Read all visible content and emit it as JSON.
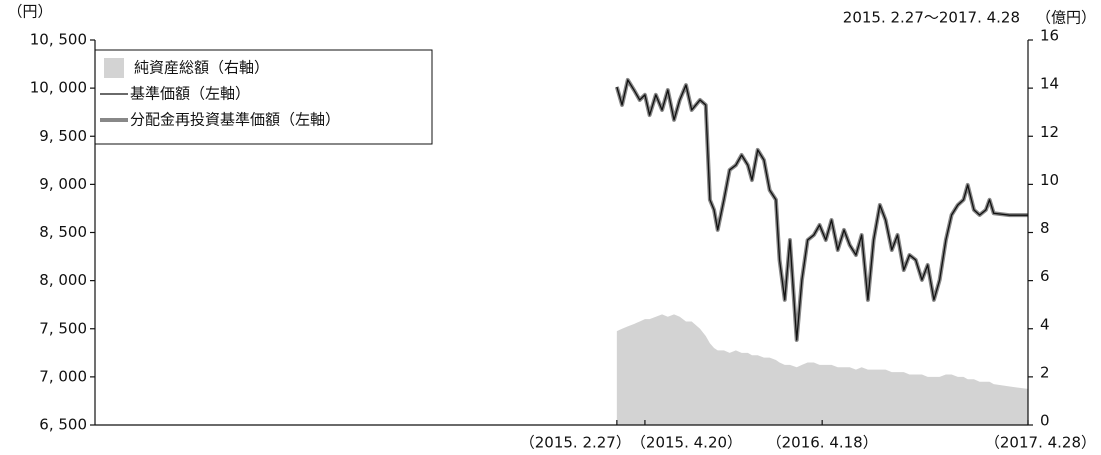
{
  "chart_data": {
    "type": "line",
    "left_unit": "（円）",
    "right_unit": "（億円）",
    "period": "2015. 2.27～2017. 4.28",
    "x": [
      0,
      10,
      21,
      33,
      44,
      54,
      63,
      75,
      87,
      98,
      110,
      121,
      133,
      144,
      160,
      171,
      179,
      187,
      194,
      206,
      217,
      229,
      240,
      252,
      260,
      271,
      283,
      294,
      306,
      313,
      323,
      333,
      346,
      356,
      367,
      379,
      390,
      402,
      413,
      425,
      437,
      448,
      460,
      471,
      483,
      494,
      506,
      517,
      529,
      540,
      552,
      563,
      575,
      587,
      598,
      610,
      621,
      633,
      644,
      656,
      667,
      675,
      687,
      698,
      710,
      717,
      725,
      756,
      791
    ],
    "xlim": [
      -1004,
      791
    ],
    "xticks": [
      {
        "value": 0,
        "label": "（2015. 2.27）"
      },
      {
        "value": 54,
        "label": "（2015. 4.20）"
      },
      {
        "value": 395,
        "label": "（2016. 4.18）"
      },
      {
        "value": 791,
        "label": "（2017. 4.28）"
      }
    ],
    "ylim": [
      6500,
      10500
    ],
    "yticks": [
      {
        "value": 6500,
        "label": "6, 500"
      },
      {
        "value": 7000,
        "label": "7, 000"
      },
      {
        "value": 7500,
        "label": "7, 500"
      },
      {
        "value": 8000,
        "label": "8, 000"
      },
      {
        "value": 8500,
        "label": "8, 500"
      },
      {
        "value": 9000,
        "label": "9, 000"
      },
      {
        "value": 9500,
        "label": "9, 500"
      },
      {
        "value": 10000,
        "label": "10, 000"
      },
      {
        "value": 10500,
        "label": "10, 500"
      }
    ],
    "y2lim": [
      0,
      16
    ],
    "y2ticks": [
      0,
      2,
      4,
      6,
      8,
      10,
      12,
      14,
      16
    ],
    "series": [
      {
        "name": "純資産総額（右軸）",
        "type": "area",
        "axis": "y2",
        "color": "#d3d3d3",
        "values": [
          3.9,
          4.0,
          4.1,
          4.2,
          4.3,
          4.4,
          4.4,
          4.5,
          4.6,
          4.5,
          4.6,
          4.5,
          4.3,
          4.3,
          4.0,
          3.7,
          3.4,
          3.2,
          3.1,
          3.1,
          3.0,
          3.1,
          3.0,
          3.0,
          2.9,
          2.9,
          2.8,
          2.8,
          2.7,
          2.6,
          2.5,
          2.5,
          2.4,
          2.5,
          2.6,
          2.6,
          2.5,
          2.5,
          2.5,
          2.4,
          2.4,
          2.4,
          2.3,
          2.4,
          2.3,
          2.3,
          2.3,
          2.3,
          2.2,
          2.2,
          2.2,
          2.1,
          2.1,
          2.1,
          2.0,
          2.0,
          2.0,
          2.1,
          2.1,
          2.0,
          2.0,
          1.9,
          1.9,
          1.8,
          1.8,
          1.8,
          1.7,
          1.6,
          1.5
        ]
      },
      {
        "name": "分配金再投資基準価額（左軸）",
        "type": "line",
        "color": "#888888",
        "values": [
          10012,
          9825,
          10085,
          9980,
          9877,
          9930,
          9720,
          9930,
          9773,
          9980,
          9670,
          9877,
          10032,
          9773,
          9877,
          9825,
          8840,
          8735,
          8527,
          8840,
          9150,
          9200,
          9305,
          9200,
          9045,
          9358,
          9253,
          8940,
          8840,
          8215,
          7800,
          8422,
          7383,
          8007,
          8422,
          8474,
          8578,
          8422,
          8630,
          8318,
          8527,
          8370,
          8266,
          8474,
          7800,
          8422,
          8786,
          8630,
          8318,
          8474,
          8110,
          8266,
          8215,
          8007,
          8163,
          7800,
          8007,
          8422,
          8682,
          8786,
          8840,
          8994,
          8735,
          8682,
          8735,
          8840,
          8700,
          8680,
          8680
        ]
      },
      {
        "name": "基準価額（左軸）",
        "type": "line",
        "color": "#111111",
        "values": [
          10012,
          9825,
          10085,
          9980,
          9877,
          9930,
          9720,
          9930,
          9773,
          9980,
          9670,
          9877,
          10032,
          9773,
          9877,
          9825,
          8840,
          8735,
          8527,
          8840,
          9150,
          9200,
          9305,
          9200,
          9045,
          9358,
          9253,
          8940,
          8840,
          8215,
          7800,
          8422,
          7383,
          8007,
          8422,
          8474,
          8578,
          8422,
          8630,
          8318,
          8527,
          8370,
          8266,
          8474,
          7800,
          8422,
          8786,
          8630,
          8318,
          8474,
          8110,
          8266,
          8215,
          8007,
          8163,
          7800,
          8007,
          8422,
          8682,
          8786,
          8840,
          8994,
          8735,
          8682,
          8735,
          8840,
          8700,
          8680,
          8680
        ]
      }
    ]
  }
}
